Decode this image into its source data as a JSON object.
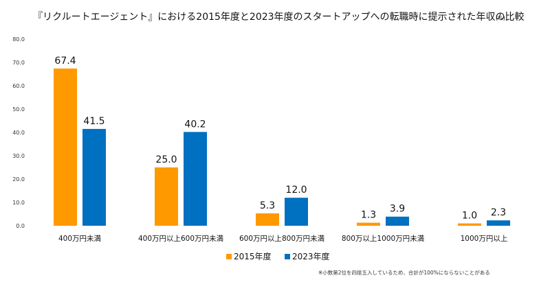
{
  "chart_data": {
    "type": "bar",
    "title": "『リクルートエージェント』における2015年度と2023年度のスタートアップへの転職時に提示された年収の比較",
    "unit": "(%)",
    "categories": [
      "400万円未満",
      "400万円以上600万円未満",
      "600万円以上800万円未満",
      "800万以上1000万円未満",
      "1000万円以上"
    ],
    "series": [
      {
        "name": "2015年度",
        "color": "#ff9900",
        "values": [
          67.4,
          25.0,
          5.3,
          1.3,
          1.0
        ],
        "labels": [
          "67.4",
          "25.0",
          "5.3",
          "1.3",
          "1.0"
        ]
      },
      {
        "name": "2023年度",
        "color": "#0070c0",
        "values": [
          41.5,
          40.2,
          12.0,
          3.9,
          2.3
        ],
        "labels": [
          "41.5",
          "40.2",
          "12.0",
          "3.9",
          "2.3"
        ]
      }
    ],
    "ylim": [
      0,
      80
    ],
    "yticks": [
      "0.0",
      "10.0",
      "20.0",
      "30.0",
      "40.0",
      "50.0",
      "60.0",
      "70.0",
      "80.0"
    ],
    "xlabel": "",
    "ylabel": "",
    "grid": false,
    "legend_position": "bottom",
    "note": "※小数第2位を四捨五入しているため、合計が100%にならないことがある"
  }
}
